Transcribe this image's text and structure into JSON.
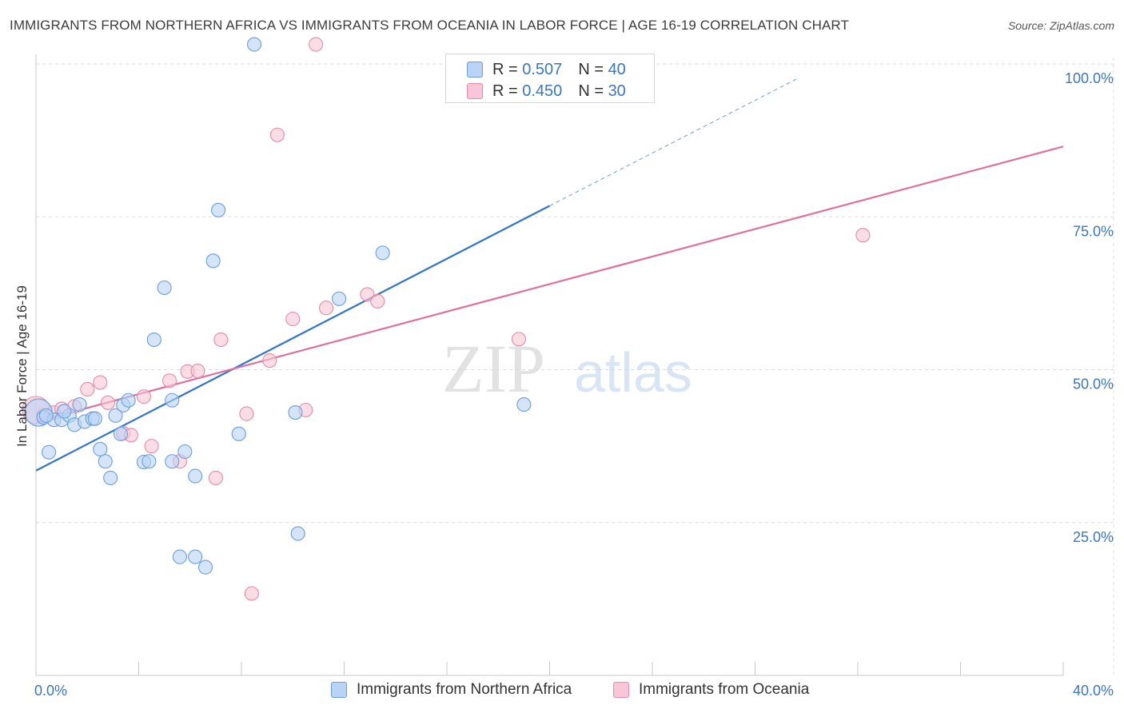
{
  "title": "IMMIGRANTS FROM NORTHERN AFRICA VS IMMIGRANTS FROM OCEANIA IN LABOR FORCE | AGE 16-19 CORRELATION CHART",
  "source": "Source: ZipAtlas.com",
  "watermark": {
    "zip": "ZIP",
    "atlas": "atlas"
  },
  "stats_legend": [
    {
      "r_label": "R =",
      "r_value": "0.507",
      "n_label": "N =",
      "n_value": "40"
    },
    {
      "r_label": "R =",
      "r_value": "0.450",
      "n_label": "N =",
      "n_value": "30"
    }
  ],
  "bottom_legend": [
    {
      "label": "Immigrants from Northern Africa"
    },
    {
      "label": "Immigrants from Oceania"
    }
  ],
  "colors": {
    "blue_fill": "#b8d3f5",
    "blue_stroke": "#6a9de0",
    "blue_line": "#2f74d0",
    "pink_fill": "#f8c6d6",
    "pink_stroke": "#e88aa8",
    "pink_line": "#e0709a",
    "tick_label": "#3a76c6",
    "grid": "#dcdcdc"
  },
  "chart_data": {
    "type": "scatter",
    "title": "IMMIGRANTS FROM NORTHERN AFRICA VS IMMIGRANTS FROM OCEANIA IN LABOR FORCE | AGE 16-19 CORRELATION CHART",
    "xlabel": "",
    "ylabel": "In Labor Force | Age 16-19",
    "xlim": [
      0,
      40
    ],
    "ylim": [
      0,
      100
    ],
    "x_tick_labels": [
      {
        "value": 0,
        "label": "0.0%"
      },
      {
        "value": 40,
        "label": "40.0%"
      }
    ],
    "y_tick_labels": [
      {
        "value": 25,
        "label": "25.0%"
      },
      {
        "value": 50,
        "label": "50.0%"
      },
      {
        "value": 75,
        "label": "75.0%"
      },
      {
        "value": 100,
        "label": "100.0%"
      }
    ],
    "grid": true,
    "legend_position": "top-center",
    "series": [
      {
        "name": "Immigrants from Northern Africa",
        "color": "#2f74d0",
        "r": 0.507,
        "n": 40,
        "trend": {
          "x0": 0,
          "y0": 33.5,
          "x1": 20.0,
          "y1": 76.8,
          "dashed_to_x": 29.6,
          "dashed_to_y": 97.5
        },
        "points": [
          {
            "x": 0.1,
            "y": 43.0,
            "big": true
          },
          {
            "x": 0.3,
            "y": 42.2
          },
          {
            "x": 0.7,
            "y": 41.8
          },
          {
            "x": 1.0,
            "y": 41.8
          },
          {
            "x": 1.3,
            "y": 42.5
          },
          {
            "x": 1.5,
            "y": 41.0
          },
          {
            "x": 1.7,
            "y": 44.3
          },
          {
            "x": 1.9,
            "y": 41.5
          },
          {
            "x": 2.2,
            "y": 42.0
          },
          {
            "x": 2.3,
            "y": 42.0
          },
          {
            "x": 3.1,
            "y": 42.5
          },
          {
            "x": 3.4,
            "y": 44.2
          },
          {
            "x": 3.6,
            "y": 45.0
          },
          {
            "x": 2.5,
            "y": 37.0
          },
          {
            "x": 3.3,
            "y": 39.5
          },
          {
            "x": 2.7,
            "y": 35.0
          },
          {
            "x": 2.9,
            "y": 32.3
          },
          {
            "x": 0.5,
            "y": 36.5
          },
          {
            "x": 4.2,
            "y": 34.9
          },
          {
            "x": 4.4,
            "y": 35.0
          },
          {
            "x": 5.3,
            "y": 35.0
          },
          {
            "x": 5.8,
            "y": 36.6
          },
          {
            "x": 5.3,
            "y": 45.0
          },
          {
            "x": 6.2,
            "y": 32.6
          },
          {
            "x": 7.9,
            "y": 39.5
          },
          {
            "x": 10.1,
            "y": 43.0
          },
          {
            "x": 4.6,
            "y": 54.9
          },
          {
            "x": 5.0,
            "y": 63.4
          },
          {
            "x": 6.9,
            "y": 67.8
          },
          {
            "x": 7.1,
            "y": 76.1
          },
          {
            "x": 8.5,
            "y": 103.2
          },
          {
            "x": 11.8,
            "y": 61.6
          },
          {
            "x": 13.5,
            "y": 69.1
          },
          {
            "x": 10.2,
            "y": 23.2
          },
          {
            "x": 5.6,
            "y": 19.4
          },
          {
            "x": 6.2,
            "y": 19.4
          },
          {
            "x": 6.6,
            "y": 17.7
          },
          {
            "x": 19.0,
            "y": 44.3
          },
          {
            "x": 0.4,
            "y": 42.5
          },
          {
            "x": 1.1,
            "y": 43.2
          }
        ]
      },
      {
        "name": "Immigrants from Oceania",
        "color": "#e0709a",
        "r": 0.45,
        "n": 30,
        "trend": {
          "x0": 0,
          "y0": 41.5,
          "x1": 40,
          "y1": 86.5
        },
        "points": [
          {
            "x": 0.0,
            "y": 43.4,
            "big": true
          },
          {
            "x": 0.3,
            "y": 42.5
          },
          {
            "x": 0.7,
            "y": 43.0
          },
          {
            "x": 1.0,
            "y": 43.6
          },
          {
            "x": 1.5,
            "y": 44.0
          },
          {
            "x": 2.0,
            "y": 46.8
          },
          {
            "x": 2.5,
            "y": 47.9
          },
          {
            "x": 2.8,
            "y": 44.6
          },
          {
            "x": 3.4,
            "y": 39.6
          },
          {
            "x": 3.7,
            "y": 39.3
          },
          {
            "x": 4.2,
            "y": 45.6
          },
          {
            "x": 4.5,
            "y": 37.5
          },
          {
            "x": 5.2,
            "y": 48.2
          },
          {
            "x": 5.6,
            "y": 35.0
          },
          {
            "x": 5.9,
            "y": 49.7
          },
          {
            "x": 6.3,
            "y": 49.8
          },
          {
            "x": 7.0,
            "y": 32.3
          },
          {
            "x": 7.2,
            "y": 54.9
          },
          {
            "x": 8.2,
            "y": 42.8
          },
          {
            "x": 9.1,
            "y": 51.5
          },
          {
            "x": 10.0,
            "y": 58.3
          },
          {
            "x": 10.5,
            "y": 43.4
          },
          {
            "x": 11.3,
            "y": 60.1
          },
          {
            "x": 12.9,
            "y": 62.3
          },
          {
            "x": 13.3,
            "y": 61.2
          },
          {
            "x": 18.8,
            "y": 55.0
          },
          {
            "x": 9.4,
            "y": 88.4
          },
          {
            "x": 10.9,
            "y": 103.2
          },
          {
            "x": 32.2,
            "y": 72.0
          },
          {
            "x": 8.4,
            "y": 13.4
          }
        ]
      }
    ]
  }
}
